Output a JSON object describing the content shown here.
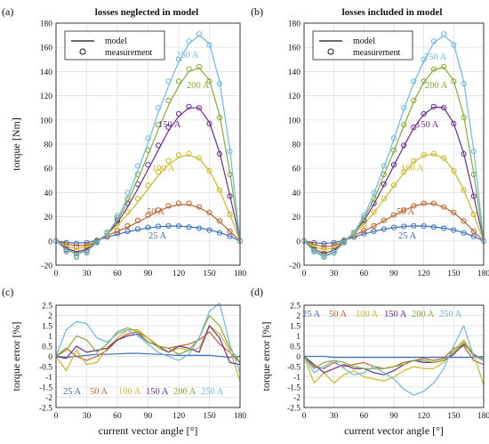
{
  "colors": {
    "c25": "#3a6fbf",
    "c50": "#c0622a",
    "c100": "#cdb81f",
    "c150": "#6a2d8f",
    "c200": "#84aa33",
    "c250": "#6cb8e6"
  },
  "panels": {
    "a": {
      "label": "(a)",
      "title": "losses neglected in model"
    },
    "b": {
      "label": "(b)",
      "title": "losses included in model"
    },
    "c": {
      "label": "(c)"
    },
    "d": {
      "label": "(d)"
    }
  },
  "legend": {
    "model": "model",
    "measurement": "measurement"
  },
  "current_labels": [
    "25 A",
    "50 A",
    "100 A",
    "150 A",
    "200 A",
    "250 A"
  ],
  "chart_data": [
    {
      "type": "line",
      "panel": "a",
      "title": "losses neglected in model",
      "xlabel": "",
      "ylabel": "torque [Nm]",
      "xlim": [
        0,
        180
      ],
      "ylim": [
        -20,
        180
      ],
      "xticks": [
        0,
        30,
        60,
        90,
        120,
        150,
        180
      ],
      "yticks": [
        -20,
        0,
        20,
        40,
        60,
        80,
        100,
        120,
        140,
        160,
        180
      ],
      "grid": true,
      "legend_position": "top-left",
      "x": [
        0,
        10,
        20,
        30,
        40,
        50,
        60,
        70,
        80,
        90,
        100,
        110,
        120,
        130,
        140,
        150,
        160,
        170,
        180
      ],
      "series": [
        {
          "name": "25 A",
          "model": [
            0,
            -1.2,
            -1.8,
            -1.3,
            0.5,
            3,
            5.5,
            7.5,
            9.3,
            10.8,
            11.8,
            12.3,
            12.3,
            11.8,
            10.8,
            9.2,
            7,
            4,
            0
          ],
          "measurement": [
            0,
            -1.5,
            -2.2,
            -1.5,
            0.5,
            3.2,
            6,
            8,
            9.8,
            11.2,
            12,
            12.5,
            12.3,
            11.5,
            10.5,
            9,
            6.7,
            3.8,
            0
          ]
        },
        {
          "name": "50 A",
          "model": [
            0,
            -2.5,
            -4,
            -3.5,
            0,
            4.5,
            8,
            11.5,
            15.5,
            20,
            24.5,
            28,
            30,
            30,
            27.5,
            23,
            16,
            8,
            0
          ],
          "measurement": [
            0,
            -3,
            -5,
            -4,
            0,
            4.5,
            8.5,
            12.5,
            17,
            21.5,
            25.5,
            29,
            31,
            31,
            28,
            23.5,
            16.5,
            8,
            0
          ]
        },
        {
          "name": "100 A",
          "model": [
            0,
            -4.5,
            -6.5,
            -5,
            0,
            5.5,
            13,
            22,
            32,
            43,
            54,
            63,
            69,
            71,
            68,
            58,
            42,
            22,
            0
          ],
          "measurement": [
            0,
            -5,
            -7.5,
            -6,
            0,
            6,
            14,
            24,
            35,
            46,
            57,
            66,
            71,
            72,
            68.5,
            58,
            42,
            22,
            0
          ]
        },
        {
          "name": "150 A",
          "model": [
            0,
            -6,
            -9,
            -7,
            -0.5,
            6,
            15,
            28,
            43,
            59,
            75,
            91,
            103,
            110,
            110,
            98,
            73,
            38,
            0
          ],
          "measurement": [
            0,
            -7,
            -10.5,
            -8,
            -0.5,
            7,
            17,
            31,
            47,
            63,
            79,
            94,
            105,
            111,
            110,
            97,
            72,
            37,
            0
          ]
        },
        {
          "name": "200 A",
          "model": [
            0,
            -7,
            -10.5,
            -8,
            -1,
            6,
            17,
            32,
            51,
            71,
            92,
            112,
            128,
            140,
            143,
            133,
            104,
            57,
            0
          ],
          "measurement": [
            0,
            -8,
            -12.5,
            -9.5,
            -1,
            7,
            19,
            35,
            55,
            75,
            96,
            116,
            132,
            142,
            144,
            132,
            102,
            55,
            0
          ]
        },
        {
          "name": "250 A",
          "model": [
            0,
            -7.5,
            -11,
            -8.5,
            -1.5,
            6,
            18,
            36,
            58,
            81,
            106,
            128,
            148,
            163,
            170,
            163,
            132,
            76,
            0
          ],
          "measurement": [
            0,
            -9,
            -13.5,
            -10,
            -1.5,
            7,
            21,
            40,
            62,
            85,
            110,
            132,
            150,
            165,
            171,
            162,
            130,
            74,
            0
          ]
        }
      ]
    },
    {
      "type": "line",
      "panel": "b",
      "title": "losses included in model",
      "xlabel": "",
      "ylabel": "",
      "xlim": [
        0,
        180
      ],
      "ylim": [
        -20,
        180
      ],
      "xticks": [
        0,
        30,
        60,
        90,
        120,
        150,
        180
      ],
      "yticks": [
        -20,
        0,
        20,
        40,
        60,
        80,
        100,
        120,
        140,
        160,
        180
      ],
      "grid": true,
      "legend_position": "top-left",
      "x": [
        0,
        10,
        20,
        30,
        40,
        50,
        60,
        70,
        80,
        90,
        100,
        110,
        120,
        130,
        140,
        150,
        160,
        170,
        180
      ],
      "series": [
        {
          "name": "25 A",
          "model": [
            0,
            -1.4,
            -2.1,
            -1.4,
            0.5,
            3.1,
            5.9,
            7.9,
            9.7,
            11.1,
            11.9,
            12.4,
            12.3,
            11.6,
            10.6,
            9.1,
            6.8,
            3.9,
            0
          ],
          "measurement": [
            0,
            -1.5,
            -2.2,
            -1.5,
            0.5,
            3.2,
            6,
            8,
            9.8,
            11.2,
            12,
            12.5,
            12.3,
            11.5,
            10.5,
            9,
            6.7,
            3.8,
            0
          ]
        },
        {
          "name": "50 A",
          "model": [
            0,
            -2.8,
            -4.8,
            -3.8,
            0,
            4.5,
            8.3,
            12.2,
            16.6,
            21.2,
            25.2,
            28.7,
            30.7,
            30.8,
            27.9,
            23.3,
            16.4,
            8,
            0
          ],
          "measurement": [
            0,
            -3,
            -5,
            -4,
            0,
            4.5,
            8.5,
            12.5,
            17,
            21.5,
            25.5,
            29,
            31,
            31,
            28,
            23.5,
            16.5,
            8,
            0
          ]
        },
        {
          "name": "100 A",
          "model": [
            0,
            -4.8,
            -7.2,
            -5.7,
            0,
            5.8,
            13.6,
            23.4,
            34.3,
            45.3,
            56.2,
            65.3,
            70.6,
            71.7,
            68.4,
            58.1,
            42.1,
            22,
            0
          ],
          "measurement": [
            0,
            -5,
            -7.5,
            -6,
            0,
            6,
            14,
            24,
            35,
            46,
            57,
            66,
            71,
            72,
            68.5,
            58,
            42,
            22,
            0
          ]
        },
        {
          "name": "150 A",
          "model": [
            0,
            -6.8,
            -10.2,
            -7.8,
            -0.5,
            6.8,
            16.5,
            30.3,
            46.2,
            62.2,
            78.2,
            93.3,
            104.5,
            110.6,
            110.2,
            97.2,
            72.3,
            37.3,
            0
          ],
          "measurement": [
            0,
            -7,
            -10.5,
            -8,
            -0.5,
            7,
            17,
            31,
            47,
            63,
            79,
            94,
            105,
            111,
            110,
            97,
            72,
            37,
            0
          ]
        },
        {
          "name": "200 A",
          "model": [
            0,
            -7.8,
            -12.2,
            -9.2,
            -1,
            6.8,
            18.5,
            34.2,
            54.1,
            74.1,
            95.1,
            115.2,
            131.2,
            141.4,
            143.6,
            132.6,
            103.4,
            56,
            0
          ],
          "measurement": [
            0,
            -8,
            -12.5,
            -9.5,
            -1,
            7,
            19,
            35,
            55,
            75,
            96,
            116,
            132,
            142,
            144,
            132,
            102,
            55,
            0
          ]
        },
        {
          "name": "250 A",
          "model": [
            0,
            -8.8,
            -13.2,
            -9.7,
            -1.5,
            6.8,
            20.4,
            39.1,
            61,
            83.9,
            108.8,
            130.5,
            148.6,
            163.8,
            169.7,
            163.2,
            131.6,
            75.5,
            0
          ],
          "measurement": [
            0,
            -9,
            -13.5,
            -10,
            -1.5,
            7,
            21,
            40,
            62,
            85,
            110,
            132,
            150,
            165,
            171,
            162,
            130,
            74,
            0
          ]
        }
      ]
    },
    {
      "type": "line",
      "panel": "c",
      "xlabel": "current vector angle [°]",
      "ylabel": "torque error [%]",
      "xlim": [
        0,
        180
      ],
      "ylim": [
        -2.5,
        2.5
      ],
      "xticks": [
        0,
        30,
        60,
        90,
        120,
        150,
        180
      ],
      "yticks": [
        -2.5,
        -2,
        -1.5,
        -1,
        -0.5,
        0,
        0.5,
        1,
        1.5,
        2,
        2.5
      ],
      "grid": true,
      "legend_position": "bottom-left",
      "x": [
        0,
        10,
        20,
        30,
        40,
        50,
        60,
        70,
        80,
        90,
        100,
        110,
        120,
        130,
        140,
        150,
        160,
        170,
        180
      ],
      "series": [
        {
          "name": "25 A",
          "values": [
            0,
            -0.05,
            0,
            0.05,
            0.1,
            0.1,
            0.12,
            0.15,
            0.15,
            0.12,
            0.1,
            0.08,
            0.05,
            0.05,
            0.05,
            0.05,
            0,
            -0.05,
            0
          ]
        },
        {
          "name": "50 A",
          "values": [
            0,
            0.4,
            0,
            -0.2,
            0,
            0.3,
            0.8,
            1.1,
            1.2,
            0.9,
            0.5,
            0.4,
            0.5,
            0.6,
            0.8,
            1.2,
            0.6,
            0.2,
            -0.3
          ]
        },
        {
          "name": "100 A",
          "values": [
            0,
            -0.7,
            0.3,
            -0.4,
            -0.3,
            0.4,
            0.9,
            1.3,
            1.3,
            0.9,
            0.4,
            0.2,
            0.4,
            0.3,
            0.4,
            1.5,
            1.1,
            0.3,
            -1.2
          ]
        },
        {
          "name": "150 A",
          "values": [
            0,
            -0.1,
            0.5,
            0.2,
            0.3,
            0.4,
            0.8,
            1.0,
            1.1,
            0.7,
            0.5,
            0.2,
            0.5,
            0.4,
            0.2,
            1.5,
            0.9,
            -0.3,
            -0.4
          ]
        },
        {
          "name": "200 A",
          "values": [
            0,
            0.3,
            1.0,
            0.8,
            0.2,
            0.6,
            1.2,
            1.4,
            1.2,
            0.7,
            0.5,
            0.4,
            0.1,
            0.3,
            0.9,
            2.0,
            1.5,
            0.4,
            -0.3
          ]
        },
        {
          "name": "250 A",
          "values": [
            0,
            1.3,
            1.7,
            1.6,
            0.9,
            0.7,
            1.1,
            1.3,
            1.0,
            0.6,
            0.2,
            0,
            -0.2,
            0.1,
            0.9,
            2.2,
            2.6,
            0.6,
            -0.8
          ]
        }
      ]
    },
    {
      "type": "line",
      "panel": "d",
      "xlabel": "current vector angle [°]",
      "ylabel": "torque error [%]",
      "xlim": [
        0,
        180
      ],
      "ylim": [
        -2.5,
        2.5
      ],
      "xticks": [
        0,
        30,
        60,
        90,
        120,
        150,
        180
      ],
      "yticks": [
        -2.5,
        -2,
        -1.5,
        -1,
        -0.5,
        0,
        0.5,
        1,
        1.5,
        2,
        2.5
      ],
      "grid": true,
      "legend_position": "top-left",
      "x": [
        0,
        10,
        20,
        30,
        40,
        50,
        60,
        70,
        80,
        90,
        100,
        110,
        120,
        130,
        140,
        150,
        160,
        170,
        180
      ],
      "series": [
        {
          "name": "25 A",
          "values": [
            0,
            0,
            0,
            -0.05,
            -0.05,
            -0.05,
            -0.05,
            -0.05,
            -0.05,
            -0.05,
            -0.05,
            -0.05,
            -0.05,
            -0.05,
            -0.05,
            -0.05,
            -0.05,
            -0.05,
            0
          ]
        },
        {
          "name": "50 A",
          "values": [
            0,
            -0.5,
            -0.6,
            -0.3,
            -0.5,
            -0.4,
            -0.3,
            -0.5,
            -0.6,
            -0.5,
            -0.3,
            -0.2,
            -0.1,
            -0.2,
            -0.1,
            0.4,
            0.5,
            -0.2,
            -0.4
          ]
        },
        {
          "name": "100 A",
          "values": [
            0,
            -1.3,
            -0.8,
            -1.3,
            -0.9,
            -0.7,
            -1.0,
            -1.1,
            -1.2,
            -1.0,
            -0.7,
            -0.5,
            -0.6,
            -0.6,
            -0.3,
            0.3,
            0.8,
            0.1,
            -1.4
          ]
        },
        {
          "name": "150 A",
          "values": [
            0,
            -0.4,
            -0.8,
            -0.6,
            -0.4,
            -0.6,
            -0.6,
            -0.8,
            -0.9,
            -0.7,
            -0.4,
            -0.2,
            -0.3,
            -0.3,
            -0.2,
            0.1,
            0.6,
            0.1,
            -0.2
          ]
        },
        {
          "name": "200 A",
          "values": [
            0,
            -0.6,
            -0.3,
            -0.2,
            -0.3,
            -0.5,
            -0.6,
            -0.6,
            -0.6,
            -0.5,
            -0.4,
            -0.2,
            -0.2,
            -0.3,
            -0.2,
            0.2,
            0.7,
            0,
            -0.1
          ]
        },
        {
          "name": "250 A",
          "values": [
            0,
            -0.8,
            -0.5,
            -0.2,
            -0.6,
            -0.9,
            -0.8,
            -0.5,
            -0.8,
            -1.1,
            -1.6,
            -1.9,
            -1.7,
            -1.3,
            -0.6,
            0.5,
            1.5,
            0,
            -0.2
          ]
        }
      ]
    }
  ]
}
